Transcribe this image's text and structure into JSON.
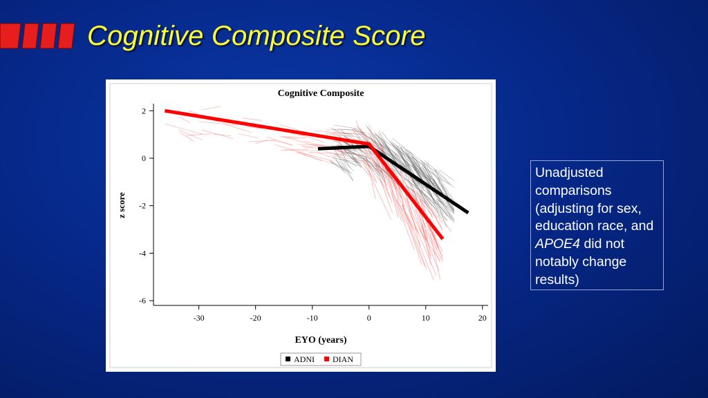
{
  "slide": {
    "title": "Cognitive Composite Score"
  },
  "note": {
    "text_before": "Unadjusted comparisons (adjusting for sex, education race, and ",
    "italic": "APOE4",
    "text_after": " did not notably change results)"
  },
  "colors": {
    "title": "#ffff33",
    "accent_red": "#e61e1e",
    "adni": "#000000",
    "dian": "#ff0000"
  },
  "chart_data": {
    "type": "line",
    "title": "Cognitive Composite",
    "xlabel": "EYO (years)",
    "ylabel": "z score",
    "xlim": [
      -38,
      21
    ],
    "ylim": [
      -6.2,
      2.3
    ],
    "x_ticks": [
      -30,
      -20,
      -10,
      0,
      10,
      20
    ],
    "y_ticks": [
      2,
      0,
      -2,
      -4,
      -6
    ],
    "grid": false,
    "legend_position": "bottom",
    "series": [
      {
        "name": "ADNI",
        "color": "#000000",
        "x": [
          -9,
          0,
          17.5
        ],
        "y": [
          0.4,
          0.5,
          -2.3
        ]
      },
      {
        "name": "DIAN",
        "color": "#ff0000",
        "x": [
          -36,
          0,
          13
        ],
        "y": [
          2.0,
          0.6,
          -3.4
        ]
      }
    ]
  }
}
